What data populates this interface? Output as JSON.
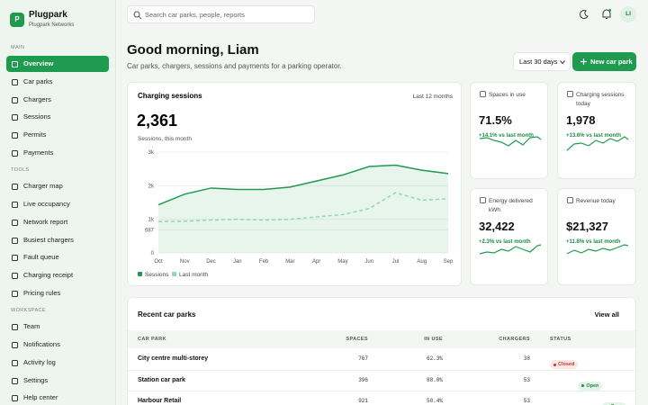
{
  "brand": {
    "initial": "P",
    "name": "Plugpark",
    "subtitle": "Plugpark Networks"
  },
  "nav": {
    "active": {
      "section": 0,
      "item": 0
    },
    "sections": [
      {
        "title": "MAIN",
        "items": [
          "Overview",
          "Car parks",
          "Chargers",
          "Sessions",
          "Permits",
          "Payments"
        ]
      },
      {
        "title": "TOOLS",
        "items": [
          "Charger map",
          "Live occupancy",
          "Network report",
          "Busiest chargers",
          "Fault queue",
          "Charging receipt",
          "Pricing rules"
        ]
      },
      {
        "title": "WORKSPACE",
        "items": [
          "Team",
          "Notifications",
          "Activity log",
          "Settings",
          "Help center"
        ]
      }
    ]
  },
  "topbar": {
    "search_placeholder": "Search car parks, people, reports",
    "avatar": "LI"
  },
  "header": {
    "title": "Good morning, Liam",
    "subtitle": "Car parks, chargers, sessions and payments for a parking operator.",
    "range": "Last 30 days",
    "button": "New car park"
  },
  "chart_data": {
    "type": "line",
    "title": "Charging sessions",
    "period": "Last 12 months",
    "headline": "2,361",
    "caption": "Sessions, this month",
    "categories": [
      "Oct",
      "Nov",
      "Dec",
      "Jan",
      "Feb",
      "Mar",
      "Apr",
      "May",
      "Jun",
      "Jul",
      "Aug",
      "Sep"
    ],
    "series": [
      {
        "name": "Sessions",
        "color": "#1e9b4e",
        "dashed": false,
        "area": true,
        "values": [
          1430,
          1750,
          1930,
          1890,
          1890,
          1960,
          2140,
          2320,
          2570,
          2610,
          2460,
          2361
        ]
      },
      {
        "name": "Last month",
        "color": "#8fdca8",
        "dashed": true,
        "area": false,
        "values": [
          933,
          944,
          978,
          1000,
          978,
          1000,
          1070,
          1140,
          1320,
          1790,
          1570,
          1610
        ]
      }
    ],
    "ylim": [
      0,
      3000
    ],
    "yticks": [
      0,
      687,
      {
        "value": 1000,
        "label": "1k"
      },
      {
        "value": 2000,
        "label": "2k"
      },
      {
        "value": 3000,
        "label": "3k"
      }
    ],
    "grid": true
  },
  "stats": [
    {
      "label": "Spaces in use",
      "value": "71.5%",
      "change": "+14.1% vs last month"
    },
    {
      "label": "Charging sessions today",
      "value": "1,978",
      "change": "+13.6% vs last month"
    },
    {
      "label": "Energy delivered kWh",
      "value": "32,422",
      "change": "+2.3% vs last month"
    },
    {
      "label": "Revenue today",
      "value": "$21,327",
      "change": "+11.8% vs last month"
    }
  ],
  "table": {
    "title": "Recent car parks",
    "link": "View all",
    "columns": [
      "CAR PARK",
      "SPACES",
      "IN USE",
      "CHARGERS",
      "STATUS"
    ],
    "rows": [
      {
        "name": "City centre multi-storey",
        "spaces": "767",
        "in_use": "62.3%",
        "chargers": "38",
        "status": "Closed",
        "status_color": "#c0392b",
        "status_bg": "#fde8e6"
      },
      {
        "name": "Station car park",
        "spaces": "396",
        "in_use": "88.0%",
        "chargers": "53",
        "status": "Open",
        "status_color": "#1e8a44",
        "status_bg": "#e3f5e8"
      },
      {
        "name": "Harbour Retail",
        "spaces": "921",
        "in_use": "50.4%",
        "chargers": "53",
        "status": "Open",
        "status_color": "#1e8a44",
        "status_bg": "#e3f5e8"
      }
    ]
  }
}
